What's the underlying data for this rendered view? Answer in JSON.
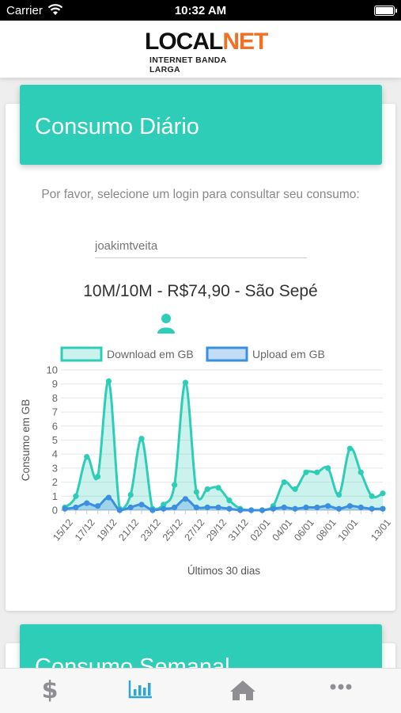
{
  "status_bar": {
    "carrier": "Carrier",
    "time": "10:32 AM"
  },
  "header": {
    "logo_local": "LOCAL",
    "logo_net": "NET",
    "logo_sub": "INTERNET BANDA LARGA"
  },
  "card": {
    "title": "Consumo Diário",
    "prompt": "Por favor, selecione um login para consultar seu consumo:",
    "login_value": "joakimtveita",
    "plan": "10M/10M - R$74,90 - São Sepé"
  },
  "next_card": {
    "title": "Consumo Semanal"
  },
  "tabs": [
    {
      "icon": "dollar-icon",
      "active": false
    },
    {
      "icon": "bar-chart-icon",
      "active": true
    },
    {
      "icon": "home-icon",
      "active": false
    },
    {
      "icon": "more-icon",
      "active": false
    }
  ],
  "colors": {
    "accent": "#2ecdb8",
    "download": "#2ecdb8",
    "upload": "#3a8fe0",
    "tab_active": "#2aa7d8",
    "tab_inactive": "#8e8e93"
  },
  "chart_data": {
    "type": "area",
    "xlabel": "Últimos 30 dias",
    "ylabel": "Consumo em GB",
    "ylim": [
      0,
      10
    ],
    "yticks": [
      0,
      1,
      2,
      3,
      4,
      5,
      6,
      7,
      8,
      9,
      10
    ],
    "legend_position": "top",
    "x": [
      "15/12",
      "16/12",
      "17/12",
      "18/12",
      "19/12",
      "20/12",
      "21/12",
      "22/12",
      "23/12",
      "24/12",
      "25/12",
      "26/12",
      "27/12",
      "28/12",
      "29/12",
      "30/12",
      "31/12",
      "01/01",
      "02/01",
      "03/01",
      "04/01",
      "05/01",
      "06/01",
      "07/01",
      "08/01",
      "09/01",
      "10/01",
      "11/01",
      "12/01",
      "13/01"
    ],
    "xtick_labels": [
      "15/12",
      "17/12",
      "19/12",
      "21/12",
      "23/12",
      "25/12",
      "27/12",
      "29/12",
      "31/12",
      "02/01",
      "04/01",
      "06/01",
      "08/01",
      "10/01",
      "13/01"
    ],
    "series": [
      {
        "name": "Download em GB",
        "values": [
          0.2,
          1.0,
          3.8,
          2.4,
          9.2,
          0.1,
          1.1,
          5.1,
          0.1,
          0.4,
          1.8,
          9.1,
          1.3,
          1.5,
          1.6,
          0.7,
          0.1,
          0.0,
          0.0,
          0.3,
          2.0,
          1.5,
          2.7,
          2.7,
          3.0,
          1.1,
          4.4,
          2.7,
          1.0,
          1.2
        ]
      },
      {
        "name": "Upload em GB",
        "values": [
          0.1,
          0.2,
          0.5,
          0.3,
          0.9,
          0.0,
          0.2,
          0.4,
          0.0,
          0.1,
          0.2,
          0.8,
          0.2,
          0.2,
          0.2,
          0.1,
          0.0,
          0.0,
          0.0,
          0.1,
          0.2,
          0.1,
          0.2,
          0.2,
          0.3,
          0.1,
          0.3,
          0.2,
          0.1,
          0.1
        ]
      }
    ]
  }
}
